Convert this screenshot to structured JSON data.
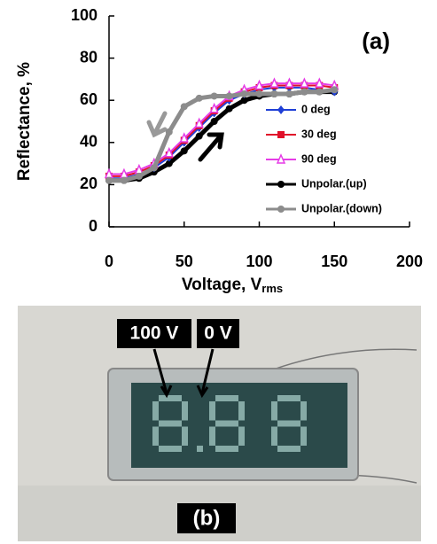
{
  "chart_data": {
    "type": "line",
    "annotation": "(a)",
    "ylabel": "Reflectance, %",
    "xlabel": {
      "text": "Voltage, V",
      "subscript": "rms"
    },
    "xlim": [
      0,
      200
    ],
    "xticks": [
      0,
      50,
      100,
      150,
      200
    ],
    "ylim": [
      0,
      100
    ],
    "yticks": [
      0,
      20,
      40,
      60,
      80,
      100
    ],
    "x": [
      0,
      10,
      20,
      30,
      40,
      50,
      60,
      70,
      80,
      90,
      100,
      110,
      120,
      130,
      140,
      150
    ],
    "series": [
      {
        "name": "0 deg",
        "color": "#1f3fd6",
        "marker": "diamond",
        "values": [
          23,
          23,
          25,
          28,
          33,
          40,
          47,
          54,
          60,
          63,
          65,
          66,
          66,
          66,
          65,
          64
        ]
      },
      {
        "name": "30 deg",
        "color": "#e0102a",
        "marker": "square",
        "values": [
          24,
          24,
          26,
          29,
          34,
          41,
          48,
          55,
          61,
          64,
          66,
          67,
          67,
          67,
          67,
          66
        ]
      },
      {
        "name": "90 deg",
        "color": "#e63ce6",
        "marker": "triangle",
        "values": [
          25,
          25,
          27,
          30,
          35,
          42,
          49,
          56,
          62,
          65,
          67,
          68,
          68,
          68,
          68,
          67
        ]
      },
      {
        "name": "Unpolar.(up)",
        "color": "#000000",
        "marker": "circle",
        "values": [
          22,
          22,
          23,
          26,
          30,
          36,
          43,
          50,
          56,
          60,
          62,
          63,
          63,
          64,
          64,
          64
        ]
      },
      {
        "name": "Unpolar.(down)",
        "color": "#8c8c8c",
        "marker": "circle",
        "values": [
          22,
          22,
          24,
          28,
          45,
          57,
          61,
          62,
          62,
          63,
          63,
          63,
          63,
          64,
          64,
          65
        ]
      }
    ]
  },
  "photo": {
    "labels": [
      "100 V",
      "0 V"
    ],
    "caption": "(b)"
  }
}
